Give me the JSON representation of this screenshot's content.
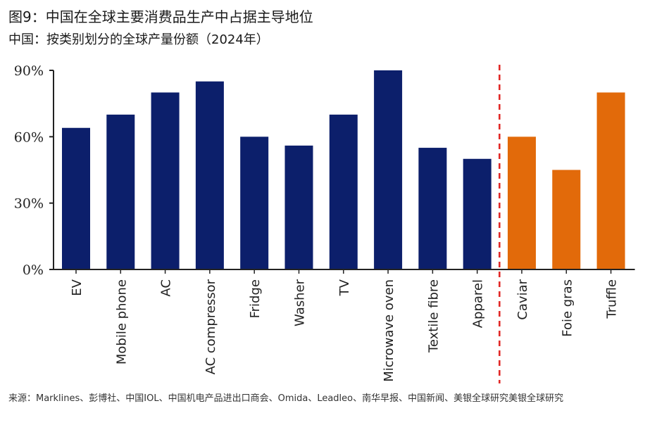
{
  "header": {
    "title": "图9：中国在全球主要消费品生产中占据主导地位",
    "subtitle": "中国：按类别划分的全球产量份额（2024年）"
  },
  "chart_data": {
    "type": "bar",
    "categories": [
      "EV",
      "Mobile phone",
      "AC",
      "AC compressor",
      "Fridge",
      "Washer",
      "TV",
      "Microwave oven",
      "Textile fibre",
      "Apparel",
      "Caviar",
      "Foie gras",
      "Truffle"
    ],
    "values": [
      64,
      70,
      80,
      85,
      60,
      56,
      70,
      90,
      55,
      50,
      60,
      45,
      80
    ],
    "groups": [
      "industrial",
      "industrial",
      "industrial",
      "industrial",
      "industrial",
      "industrial",
      "industrial",
      "industrial",
      "industrial",
      "industrial",
      "luxury",
      "luxury",
      "luxury"
    ],
    "colors": {
      "industrial": "#0c1f6b",
      "luxury": "#e26a0a",
      "divider": "#e0201e",
      "axis": "#222222"
    },
    "yticks": [
      0,
      30,
      60,
      90
    ],
    "ytick_labels": [
      "0%",
      "30%",
      "60%",
      "90%"
    ],
    "ylim": [
      0,
      90
    ],
    "divider_after": "Apparel",
    "xlabel": "",
    "ylabel": ""
  },
  "footer": {
    "source": "来源：Marklines、彭博社、中国IOL、中国机电产品进出口商会、Omida、Leadleo、南华早报、中国新闻、美银全球研究美银全球研究"
  }
}
